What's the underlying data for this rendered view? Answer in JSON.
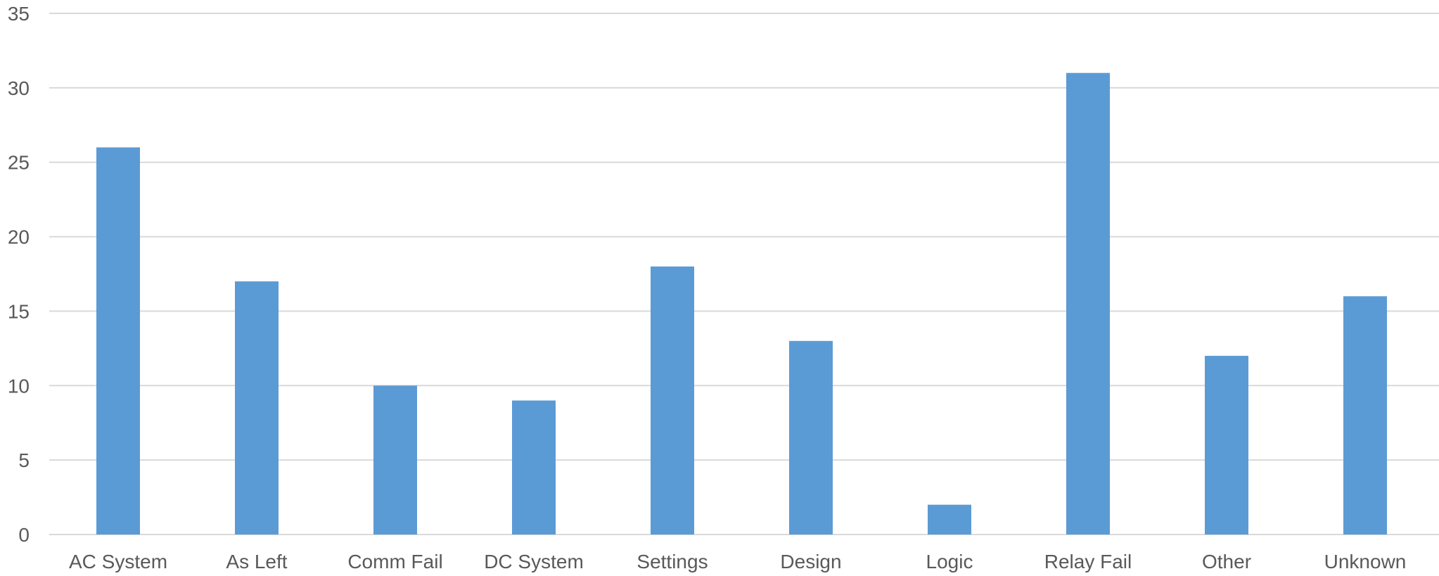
{
  "chart_data": {
    "type": "bar",
    "categories": [
      "AC System",
      "As Left",
      "Comm Fail",
      "DC System",
      "Settings",
      "Design",
      "Logic",
      "Relay Fail",
      "Other",
      "Unknown"
    ],
    "values": [
      26,
      17,
      10,
      9,
      18,
      13,
      2,
      31,
      12,
      16
    ],
    "title": "",
    "xlabel": "",
    "ylabel": "",
    "ylim": [
      0,
      35
    ],
    "yticks": [
      0,
      5,
      10,
      15,
      20,
      25,
      30,
      35
    ],
    "grid": true,
    "legend": "none",
    "colors": {
      "bar": "#5B9BD5",
      "gridline": "#D9D9D9",
      "text": "#595959"
    }
  }
}
